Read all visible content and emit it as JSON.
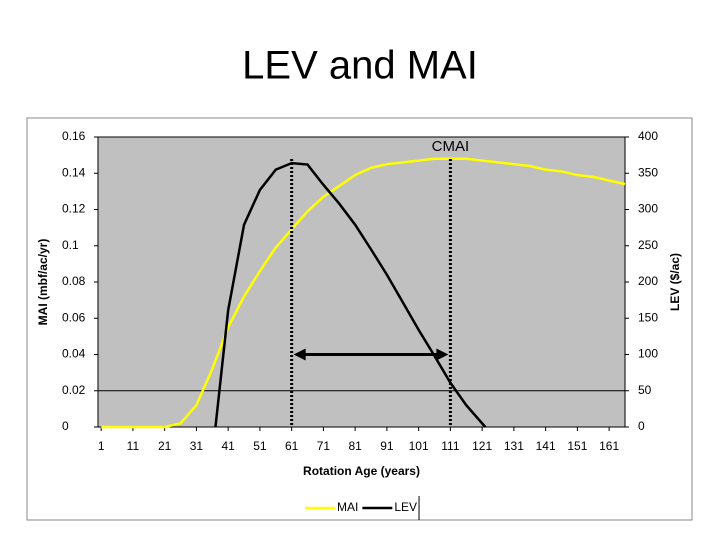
{
  "title": "LEV and MAI",
  "chart_data": {
    "type": "line",
    "xlabel": "Rotation Age (years)",
    "ylabel": "MAI (mbf/ac/yr)",
    "y2label": "LEV ($/ac)",
    "xlim": [
      0,
      166
    ],
    "xticks": [
      1,
      11,
      21,
      31,
      41,
      51,
      61,
      71,
      81,
      91,
      101,
      111,
      121,
      131,
      141,
      151,
      161
    ],
    "ylim": [
      0,
      0.16
    ],
    "yticks": [
      0,
      0.02,
      0.04,
      0.06,
      0.08,
      0.1,
      0.12,
      0.14,
      0.16
    ],
    "y2lim": [
      0,
      400
    ],
    "y2ticks": [
      0,
      50,
      100,
      150,
      200,
      250,
      300,
      350,
      400
    ],
    "hline": 0.02,
    "vlines": [
      61,
      111
    ],
    "arrow_y": 0.04,
    "annotation": {
      "text": "CMAI",
      "x": 111
    },
    "background": "#c0c0c0",
    "legend": "bottom",
    "series": [
      {
        "name": "MAI",
        "color": "#ffff00",
        "x": [
          1,
          6,
          11,
          16,
          21,
          26,
          31,
          36,
          41,
          46,
          51,
          56,
          61,
          66,
          71,
          76,
          81,
          86,
          91,
          96,
          101,
          106,
          111,
          116,
          121,
          126,
          131,
          136,
          141,
          146,
          151,
          156,
          161,
          166
        ],
        "values": [
          0,
          0,
          0,
          0,
          0,
          0.002,
          0.012,
          0.032,
          0.055,
          0.072,
          0.086,
          0.099,
          0.109,
          0.119,
          0.127,
          0.133,
          0.139,
          0.143,
          0.145,
          0.146,
          0.147,
          0.148,
          0.148,
          0.148,
          0.147,
          0.146,
          0.145,
          0.144,
          0.142,
          0.141,
          0.139,
          0.138,
          0.136,
          0.134
        ]
      },
      {
        "name": "LEV",
        "color": "#000000",
        "axis": "y2",
        "x": [
          37,
          41,
          46,
          51,
          56,
          61,
          66,
          71,
          76,
          81,
          86,
          91,
          96,
          101,
          106,
          111,
          116,
          122
        ],
        "values": [
          0,
          161,
          279,
          327,
          355,
          364,
          362,
          334,
          308,
          279,
          245,
          210,
          172,
          134,
          98,
          61,
          30,
          0
        ]
      }
    ]
  }
}
